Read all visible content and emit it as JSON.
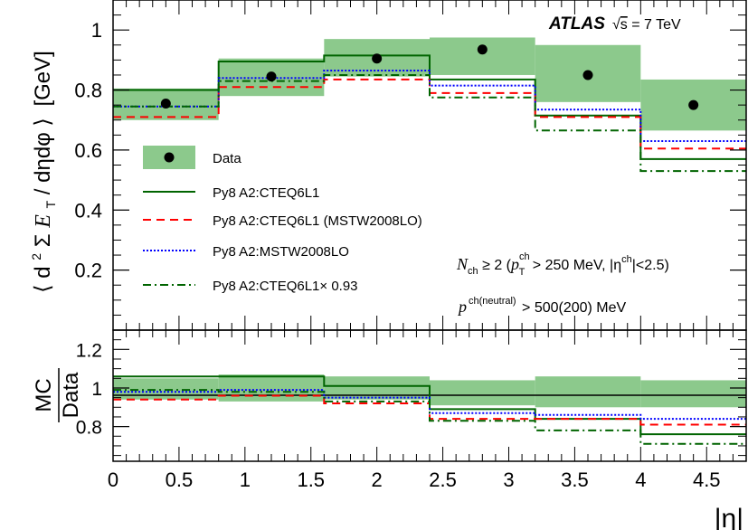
{
  "chart_data": [
    {
      "panel": "main",
      "type": "step",
      "bin_edges": [
        0,
        0.8,
        1.6,
        2.4,
        3.2,
        4.0,
        4.8
      ],
      "xlim": [
        0,
        4.8
      ],
      "ylim": [
        0,
        1.1
      ],
      "y_ticks": [
        "0.2",
        "0.4",
        "0.6",
        "0.8",
        "1"
      ],
      "y_tick_values": [
        0.2,
        0.4,
        0.6,
        0.8,
        1.0
      ],
      "ylabel": "⟨d²ΣE_T / dηdφ⟩ [GeV]",
      "ylabel_parts": {
        "lang": "⟨",
        "d2": "d",
        "sup2": "2",
        "sigma": "Σ",
        "E": "E",
        "T": "T",
        "den": "dηdφ",
        "rang": "⟩",
        "unit": "[GeV]"
      },
      "series": [
        {
          "name": "Data",
          "marker": "circle",
          "x": [
            0.4,
            1.2,
            2.0,
            2.8,
            3.6,
            4.4
          ],
          "values": [
            0.755,
            0.845,
            0.905,
            0.935,
            0.85,
            0.75
          ],
          "band_lo": [
            0.7,
            0.78,
            0.845,
            0.85,
            0.76,
            0.665
          ],
          "band_hi": [
            0.805,
            0.905,
            0.97,
            0.975,
            0.95,
            0.835
          ],
          "color": "#000000",
          "band_color": "#8cc98c"
        },
        {
          "name": "Py8 A2:CTEQ6L1",
          "style": "solid",
          "color": "#006400",
          "values": [
            0.8,
            0.895,
            0.915,
            0.835,
            0.715,
            0.57
          ]
        },
        {
          "name": "Py8 A2:CTEQ6L1 (MSTW2008LO)",
          "style": "dashed",
          "color": "#ff0000",
          "values": [
            0.71,
            0.81,
            0.835,
            0.79,
            0.71,
            0.605
          ]
        },
        {
          "name": "Py8 A2:MSTW2008LO",
          "style": "dotted",
          "color": "#0000ff",
          "values": [
            0.745,
            0.84,
            0.865,
            0.815,
            0.735,
            0.63
          ]
        },
        {
          "name": "Py8 A2:CTEQ6L1× 0.93",
          "style": "dashdot",
          "color": "#006400",
          "values": [
            0.745,
            0.83,
            0.85,
            0.775,
            0.665,
            0.53
          ]
        }
      ],
      "atlas_label": "ATLAS",
      "energy_label": "√s = 7 TeV",
      "energy_parts": {
        "sqrt": "√",
        "s": "s",
        "rest": " = 7 TeV"
      },
      "cut_line1": {
        "N": "N",
        "ch_sub": "ch",
        "geq": " ≥ 2 (",
        "p": "p",
        "p_sup": "ch",
        "p_sub": "T",
        "rest": " > 250 MeV, |η",
        "eta_sup": "ch",
        "tail": "|<2.5)"
      },
      "cut_line2": {
        "p": "p",
        "p_sup": "ch(neutral)",
        "rest": " > 500(200) MeV"
      }
    },
    {
      "panel": "ratio",
      "type": "step",
      "bin_edges": [
        0,
        0.8,
        1.6,
        2.4,
        3.2,
        4.0,
        4.8
      ],
      "xlim": [
        0,
        4.8
      ],
      "ylim": [
        0.62,
        1.3
      ],
      "y_ticks": [
        "0.8",
        "1",
        "1.2"
      ],
      "y_tick_values": [
        0.8,
        1.0,
        1.2
      ],
      "x_ticks": [
        "0",
        "0.5",
        "1",
        "1.5",
        "2",
        "2.5",
        "3",
        "3.5",
        "4",
        "4.5"
      ],
      "x_tick_values": [
        0,
        0.5,
        1,
        1.5,
        2,
        2.5,
        3,
        3.5,
        4,
        4.5
      ],
      "ylabel_num": "MC",
      "ylabel_den": "Data",
      "xlabel": "|η|",
      "band_lo": [
        0.94,
        0.93,
        0.94,
        0.91,
        0.9,
        0.9
      ],
      "band_hi": [
        1.05,
        1.07,
        1.06,
        1.04,
        1.06,
        1.04
      ],
      "series": [
        {
          "name": "Py8 A2:CTEQ6L1",
          "style": "solid",
          "color": "#006400",
          "values": [
            1.06,
            1.06,
            1.01,
            0.89,
            0.84,
            0.76
          ]
        },
        {
          "name": "Py8 A2:CTEQ6L1 (MSTW2008LO)",
          "style": "dashed",
          "color": "#ff0000",
          "values": [
            0.94,
            0.96,
            0.92,
            0.84,
            0.84,
            0.81
          ]
        },
        {
          "name": "Py8 A2:MSTW2008LO",
          "style": "dotted",
          "color": "#0000ff",
          "values": [
            0.98,
            0.99,
            0.95,
            0.87,
            0.86,
            0.84
          ]
        },
        {
          "name": "Py8 A2:CTEQ6L1× 0.93",
          "style": "dashdot",
          "color": "#006400",
          "values": [
            0.99,
            0.98,
            0.93,
            0.83,
            0.78,
            0.71
          ]
        }
      ]
    }
  ]
}
